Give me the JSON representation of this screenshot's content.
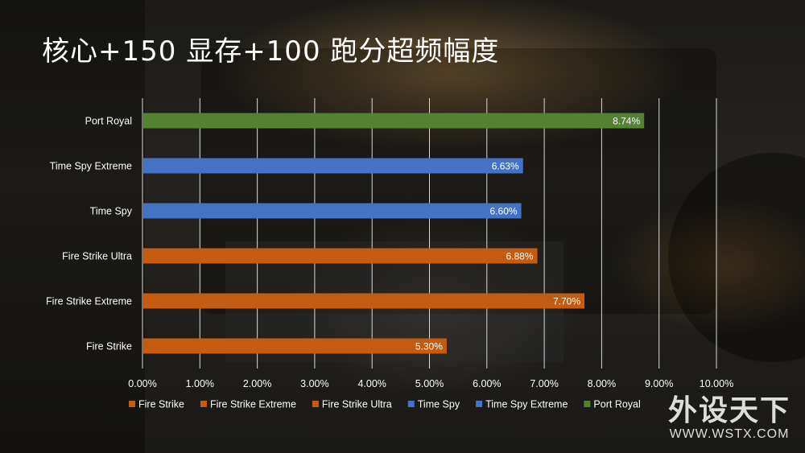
{
  "title": "核心+150 显存+100 跑分超频幅度",
  "watermark": {
    "name": "外设天下",
    "url": "WWW.WSTX.COM"
  },
  "colors": {
    "fire": "#c55a11",
    "timespy": "#4472c4",
    "port": "#548235"
  },
  "chart_data": {
    "type": "bar",
    "orientation": "horizontal",
    "title": "核心+150 显存+100 跑分超频幅度",
    "categories": [
      "Port Royal",
      "Time Spy Extreme",
      "Time Spy",
      "Fire Strike Ultra",
      "Fire Strike Extreme",
      "Fire Strike"
    ],
    "values": [
      8.74,
      6.63,
      6.6,
      6.88,
      7.7,
      5.3
    ],
    "value_labels": [
      "8.74%",
      "6.63%",
      "6.60%",
      "6.88%",
      "7.70%",
      "5.30%"
    ],
    "bar_colors": [
      "#548235",
      "#4472c4",
      "#4472c4",
      "#c55a11",
      "#c55a11",
      "#c55a11"
    ],
    "xlim": [
      0,
      10
    ],
    "x_ticks": [
      "0.00%",
      "1.00%",
      "2.00%",
      "3.00%",
      "4.00%",
      "5.00%",
      "6.00%",
      "7.00%",
      "8.00%",
      "9.00%",
      "10.00%"
    ],
    "grid": true,
    "legend_position": "bottom",
    "legend": [
      {
        "name": "Fire Strike",
        "color": "#c55a11"
      },
      {
        "name": "Fire Strike Extreme",
        "color": "#c55a11"
      },
      {
        "name": "Fire Strike Ultra",
        "color": "#c55a11"
      },
      {
        "name": "Time Spy",
        "color": "#4472c4"
      },
      {
        "name": "Time Spy Extreme",
        "color": "#4472c4"
      },
      {
        "name": "Port Royal",
        "color": "#548235"
      }
    ]
  }
}
